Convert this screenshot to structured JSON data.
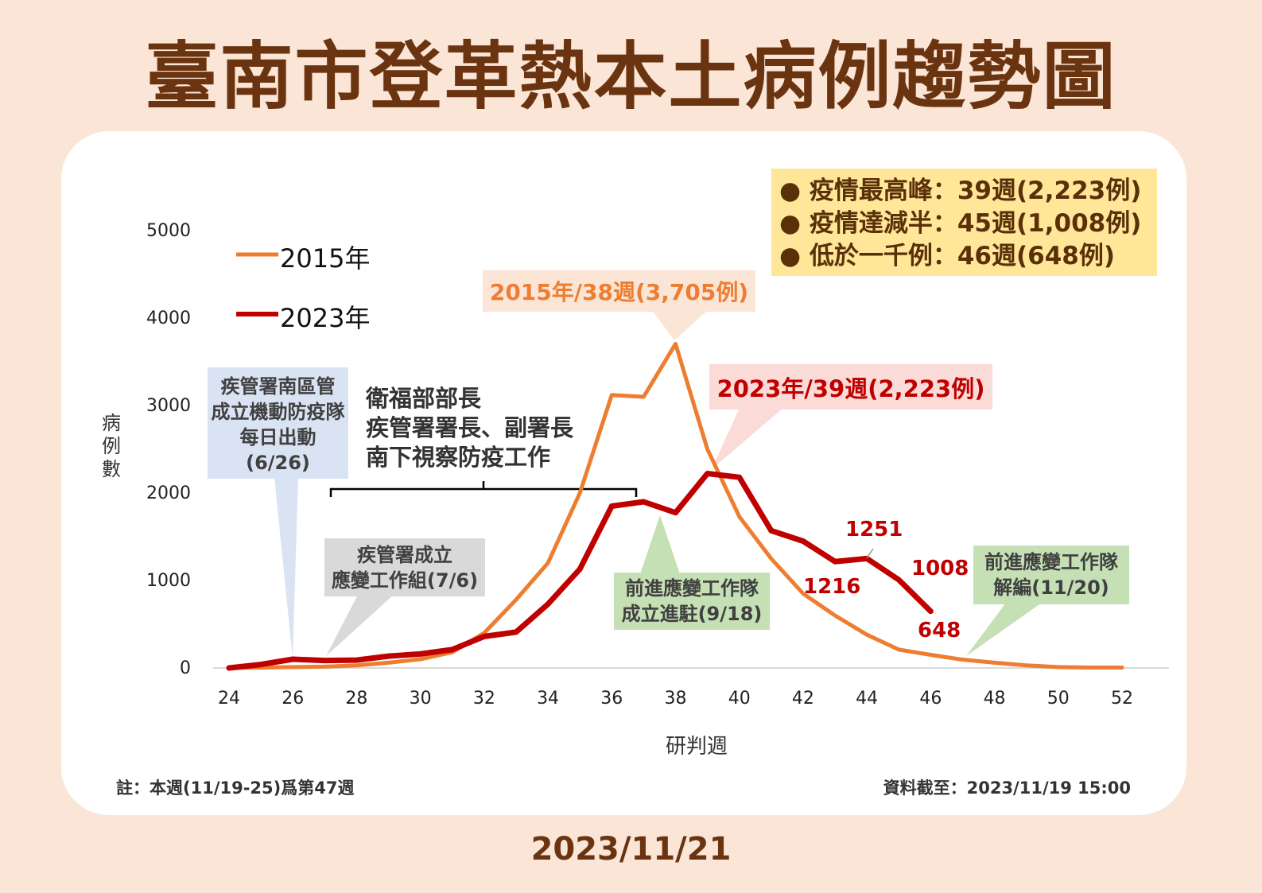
{
  "title": "臺南市登革熱本土病例趨勢圖",
  "date": "2023/11/21",
  "summary_box": [
    "● 疫情最高峰：39週(2,223例)",
    "● 疫情達減半：45週(1,008例)",
    "● 低於一千例：46週(648例)"
  ],
  "annotations": {
    "blue": [
      "疾管署南區管",
      "成立機動防疫隊",
      "每日出動",
      "(6/26)"
    ],
    "brace": [
      "衛福部部長",
      "疾管署署長、副署長",
      "南下視察防疫工作"
    ],
    "gray": [
      "疾管署成立",
      "應變工作組(7/6)"
    ],
    "green1": [
      "前進應變工作隊",
      "成立進駐(9/18)"
    ],
    "green2": [
      "前進應變工作隊",
      "解編(11/20)"
    ],
    "peak2015": "2015年/38週(3,705例)",
    "peak2023": "2023年/39週(2,223例)"
  },
  "footnote_left": "註：本週(11/19-25)爲第47週",
  "footnote_right": "資料截至：2023/11/19 15:00",
  "colors": {
    "s2015": "#ed7d31",
    "s2023": "#c00000",
    "background": "#fbe5d6",
    "title": "#6b3410"
  },
  "chart_data": {
    "type": "line",
    "xlabel": "研判週",
    "ylabel": "病例數",
    "ylim": [
      0,
      5000
    ],
    "yticks": [
      "0",
      "1000",
      "2000",
      "3000",
      "4000",
      "5000"
    ],
    "xlim": [
      24,
      52
    ],
    "xticks": [
      "24",
      "26",
      "28",
      "30",
      "32",
      "34",
      "36",
      "38",
      "40",
      "42",
      "44",
      "46",
      "48",
      "50",
      "52"
    ],
    "legend": "top-left",
    "series": [
      {
        "name": "2015年",
        "x": [
          24,
          25,
          26,
          27,
          28,
          29,
          30,
          31,
          32,
          33,
          34,
          35,
          36,
          37,
          38,
          39,
          40,
          41,
          42,
          43,
          44,
          45,
          46,
          47,
          48,
          49,
          50,
          51,
          52
        ],
        "values": [
          0,
          5,
          10,
          15,
          30,
          60,
          100,
          180,
          400,
          780,
          1200,
          2000,
          3120,
          3100,
          3705,
          2500,
          1730,
          1250,
          850,
          600,
          380,
          210,
          150,
          95,
          60,
          30,
          10,
          5,
          5
        ]
      },
      {
        "name": "2023年",
        "x": [
          24,
          25,
          26,
          27,
          28,
          29,
          30,
          31,
          32,
          33,
          34,
          35,
          36,
          37,
          38,
          39,
          40,
          41,
          42,
          43,
          44,
          45,
          46
        ],
        "values": [
          0,
          40,
          100,
          85,
          90,
          135,
          160,
          210,
          360,
          410,
          730,
          1130,
          1850,
          1900,
          1775,
          2223,
          2180,
          1570,
          1450,
          1216,
          1251,
          1008,
          648
        ]
      }
    ],
    "data_labels": [
      {
        "series": "2023年",
        "x": 43,
        "text": "1216"
      },
      {
        "series": "2023年",
        "x": 44,
        "text": "1251"
      },
      {
        "series": "2023年",
        "x": 45,
        "text": "1008"
      },
      {
        "series": "2023年",
        "x": 46,
        "text": "648"
      }
    ]
  }
}
